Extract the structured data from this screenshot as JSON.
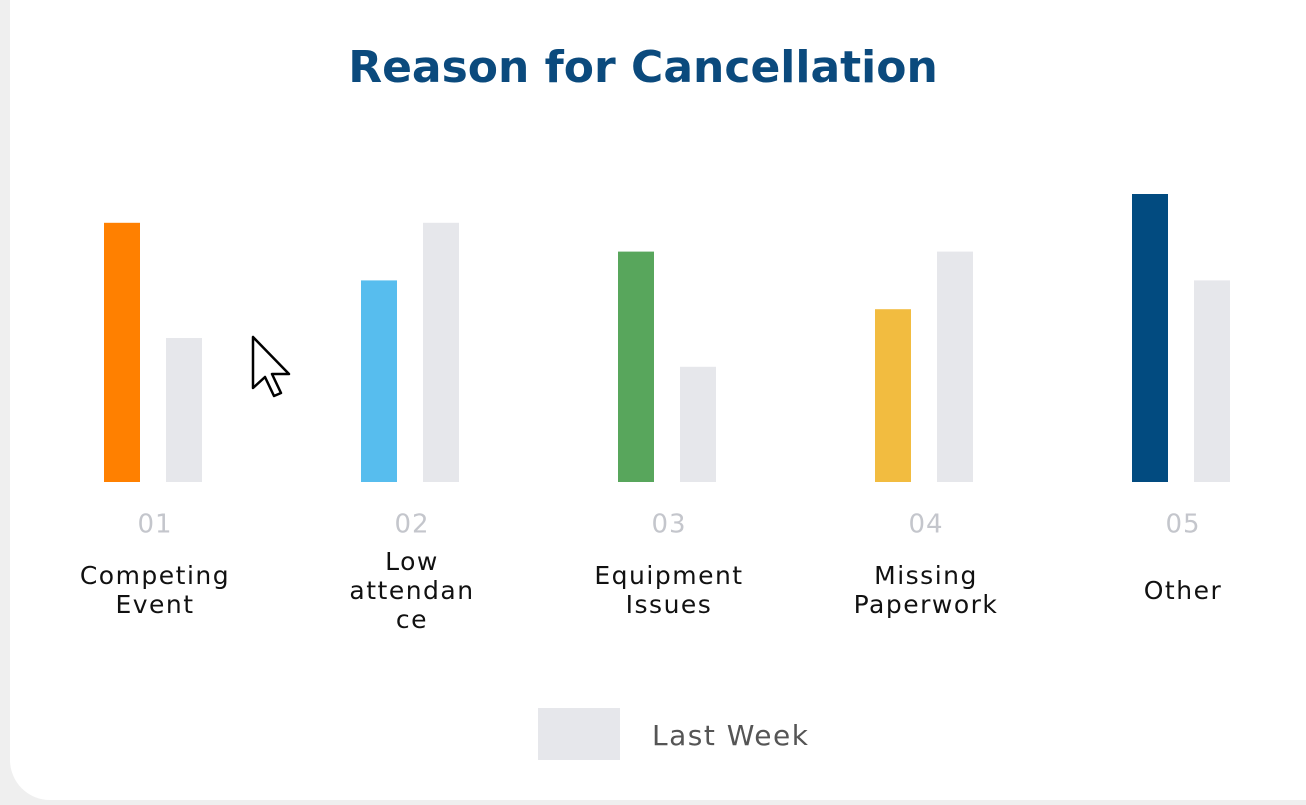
{
  "chart_data": {
    "type": "bar",
    "title": "Reason for Cancellation",
    "codes": [
      "01",
      "02",
      "03",
      "04",
      "05"
    ],
    "categories": [
      "Competing Event",
      "Low attendance",
      "Equipment Issues",
      "Missing Paperwork",
      "Other"
    ],
    "series": [
      {
        "colors": [
          "#ff8000",
          "#57bdee",
          "#58a65c",
          "#f2bc40",
          "#024b80"
        ],
        "values": [
          9,
          7,
          8,
          6,
          10
        ]
      },
      {
        "name": "Last Week",
        "color": "#e6e7eb",
        "values": [
          5,
          9,
          4,
          8,
          7
        ]
      }
    ],
    "ylim": [
      0,
      10
    ]
  }
}
